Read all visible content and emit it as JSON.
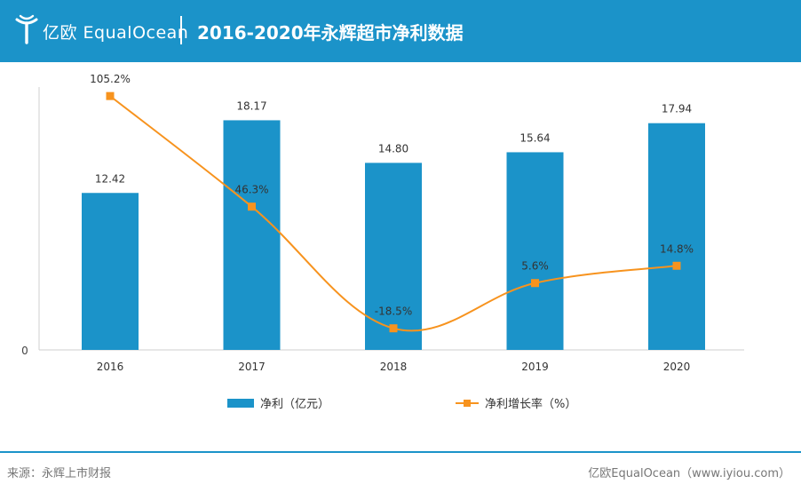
{
  "header": {
    "logo_text": "亿欧 EqualOcean",
    "title": "2016-2020年永辉超市净利数据"
  },
  "colors": {
    "header_bg": "#1b93c9",
    "bar": "#1b93c9",
    "line": "#f7931e"
  },
  "chart_data": {
    "type": "bar",
    "title": "2016-2020年永辉超市净利数据",
    "categories": [
      "2016",
      "2017",
      "2018",
      "2019",
      "2020"
    ],
    "series": [
      {
        "name": "净利（亿元）",
        "type": "bar",
        "values": [
          12.42,
          18.17,
          14.8,
          15.64,
          17.94
        ],
        "labels": [
          "12.42",
          "18.17",
          "14.80",
          "15.64",
          "17.94"
        ]
      },
      {
        "name": "净利增长率（%）",
        "type": "line",
        "values": [
          105.2,
          46.3,
          -18.5,
          5.6,
          14.8
        ],
        "labels": [
          "105.2%",
          "46.3%",
          "-18.5%",
          "5.6%",
          "14.8%"
        ]
      }
    ],
    "y_axis_zero_label": "0",
    "ylim_bar": [
      0,
      20.8
    ],
    "ylim_line": [
      -30,
      110
    ],
    "legend_position": "bottom-center"
  },
  "footer": {
    "source": "来源：永辉上市财报",
    "brand": "亿欧EqualOcean（www.iyiou.com）"
  }
}
